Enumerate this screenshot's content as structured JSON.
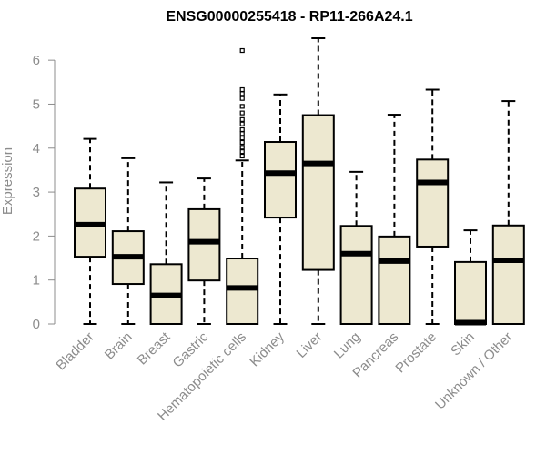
{
  "chart_data": {
    "type": "boxplot",
    "title": "ENSG00000255418 - RP11-266A24.1",
    "xlabel": "",
    "ylabel": "Expression",
    "ylim": [
      0,
      6.5
    ],
    "yticks": [
      0,
      1,
      2,
      3,
      4,
      5,
      6
    ],
    "colors": {
      "box_fill": "#ede8d0",
      "stroke": "#000000",
      "axis": "#8c8c8c"
    },
    "categories": [
      "Bladder",
      "Brain",
      "Breast",
      "Gastric",
      "Hematopoietic cells",
      "Kidney",
      "Liver",
      "Lung",
      "Pancreas",
      "Prostate",
      "Skin",
      "Unknown / Other"
    ],
    "boxes": [
      {
        "name": "Bladder",
        "min": 0,
        "q1": 1.53,
        "median": 2.26,
        "q3": 3.08,
        "max": 4.21,
        "outliers": []
      },
      {
        "name": "Brain",
        "min": 0,
        "q1": 0.91,
        "median": 1.53,
        "q3": 2.11,
        "max": 3.77,
        "outliers": []
      },
      {
        "name": "Breast",
        "min": 0,
        "q1": 0,
        "median": 0.65,
        "q3": 1.36,
        "max": 3.22,
        "outliers": []
      },
      {
        "name": "Gastric",
        "min": 0,
        "q1": 0.99,
        "median": 1.87,
        "q3": 2.61,
        "max": 3.31,
        "outliers": []
      },
      {
        "name": "Hematopoietic cells",
        "min": 0,
        "q1": 0,
        "median": 0.82,
        "q3": 1.49,
        "max": 3.72,
        "outliers": [
          3.82,
          3.92,
          4.02,
          4.13,
          4.23,
          4.33,
          4.42,
          4.55,
          4.65,
          4.8,
          4.95,
          5.13,
          5.24,
          5.33,
          6.22
        ]
      },
      {
        "name": "Kidney",
        "min": 0,
        "q1": 2.42,
        "median": 3.43,
        "q3": 4.14,
        "max": 5.22,
        "outliers": []
      },
      {
        "name": "Liver",
        "min": 0,
        "q1": 1.23,
        "median": 3.65,
        "q3": 4.75,
        "max": 6.5,
        "outliers": []
      },
      {
        "name": "Lung",
        "min": 0,
        "q1": 0,
        "median": 1.6,
        "q3": 2.23,
        "max": 3.46,
        "outliers": []
      },
      {
        "name": "Pancreas",
        "min": 0,
        "q1": 0,
        "median": 1.43,
        "q3": 1.99,
        "max": 4.76,
        "outliers": []
      },
      {
        "name": "Prostate",
        "min": 0,
        "q1": 1.76,
        "median": 3.22,
        "q3": 3.74,
        "max": 5.33,
        "outliers": []
      },
      {
        "name": "Skin",
        "min": 0,
        "q1": 0,
        "median": 0.03,
        "q3": 1.41,
        "max": 2.13,
        "outliers": []
      },
      {
        "name": "Unknown / Other",
        "min": 0,
        "q1": 0,
        "median": 1.45,
        "q3": 2.24,
        "max": 5.07,
        "outliers": []
      }
    ]
  }
}
